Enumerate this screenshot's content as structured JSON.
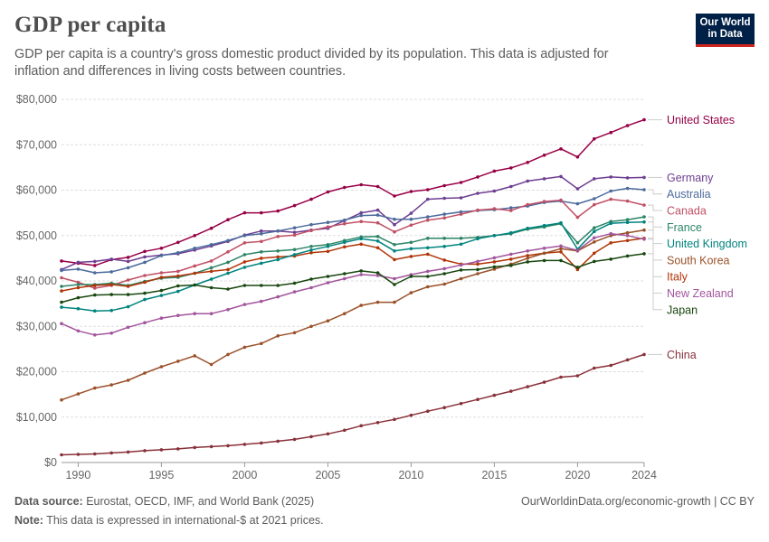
{
  "header": {
    "title": "GDP per capita",
    "subtitle": "GDP per capita is a country's gross domestic product divided by its population. This data is adjusted for inflation and differences in living costs between countries.",
    "logo_line1": "Our World",
    "logo_line2": "in Data"
  },
  "footer": {
    "source_label": "Data source:",
    "source_text": "Eurostat, OECD, IMF, and World Bank (2025)",
    "note_label": "Note:",
    "note_text": "This data is expressed in international-$ at 2021 prices.",
    "link_text": "OurWorldinData.org/economic-growth | CC BY"
  },
  "chart_data": {
    "type": "line",
    "title": "GDP per capita",
    "xlabel": "",
    "ylabel": "",
    "xlim": [
      1989,
      2024
    ],
    "ylim": [
      0,
      80000
    ],
    "grid": "horizontal dashed",
    "legend": "right (direct labels)",
    "x_ticks": [
      1990,
      1995,
      2000,
      2005,
      2010,
      2015,
      2020,
      2024
    ],
    "y_ticks": [
      0,
      10000,
      20000,
      30000,
      40000,
      50000,
      60000,
      70000,
      80000
    ],
    "y_tick_labels": [
      "$0",
      "$10,000",
      "$20,000",
      "$30,000",
      "$40,000",
      "$50,000",
      "$60,000",
      "$70,000",
      "$80,000"
    ],
    "x": [
      1989,
      1990,
      1991,
      1992,
      1993,
      1994,
      1995,
      1996,
      1997,
      1998,
      1999,
      2000,
      2001,
      2002,
      2003,
      2004,
      2005,
      2006,
      2007,
      2008,
      2009,
      2010,
      2011,
      2012,
      2013,
      2014,
      2015,
      2016,
      2017,
      2018,
      2019,
      2020,
      2021,
      2022,
      2023,
      2024
    ],
    "series": [
      {
        "name": "United States",
        "color": "#970046",
        "values": [
          44400,
          43900,
          43400,
          44700,
          45200,
          46500,
          47200,
          48500,
          50000,
          51600,
          53500,
          55000,
          55000,
          55400,
          56600,
          58000,
          59600,
          60600,
          61200,
          60800,
          58700,
          59700,
          60100,
          61000,
          61700,
          62900,
          64200,
          64900,
          66100,
          67700,
          69100,
          67300,
          71300,
          72700,
          74200,
          75500
        ]
      },
      {
        "name": "Germany",
        "color": "#6d3e91",
        "values": [
          42500,
          44100,
          44300,
          44800,
          44300,
          45300,
          45700,
          46000,
          46800,
          47700,
          48700,
          50100,
          51000,
          51000,
          50700,
          51200,
          51600,
          53300,
          55000,
          55600,
          52400,
          54900,
          58000,
          58200,
          58300,
          59300,
          59800,
          60800,
          62000,
          62500,
          63000,
          60300,
          62500,
          62900,
          62700,
          62800
        ]
      },
      {
        "name": "Australia",
        "color": "#4c6a9c",
        "values": [
          42300,
          42600,
          41800,
          42000,
          42900,
          44100,
          45600,
          46200,
          47200,
          48000,
          48900,
          50000,
          50400,
          51000,
          51700,
          52400,
          52900,
          53400,
          54400,
          54500,
          53600,
          53600,
          54100,
          54700,
          55200,
          55500,
          55700,
          56100,
          56500,
          57300,
          57600,
          57000,
          58100,
          59800,
          60400,
          60100
        ]
      },
      {
        "name": "Canada",
        "color": "#c15065",
        "values": [
          40700,
          39700,
          38400,
          39000,
          40200,
          41200,
          41800,
          42100,
          43300,
          44400,
          46400,
          48400,
          48700,
          49800,
          50100,
          51100,
          51900,
          52600,
          53100,
          52800,
          50800,
          52300,
          53400,
          53900,
          54700,
          55600,
          55900,
          55500,
          56800,
          57500,
          57800,
          54000,
          56800,
          58000,
          57600,
          56700
        ]
      },
      {
        "name": "France",
        "color": "#2c8465",
        "values": [
          38800,
          39200,
          39200,
          39500,
          39000,
          39900,
          40600,
          40800,
          41700,
          42900,
          44100,
          45800,
          46400,
          46600,
          46900,
          47600,
          48000,
          48900,
          49700,
          49800,
          48000,
          48500,
          49400,
          49400,
          49400,
          49600,
          50000,
          50400,
          51400,
          51900,
          52600,
          48400,
          51700,
          53100,
          53500,
          54100
        ]
      },
      {
        "name": "Italy",
        "color": "#b13507",
        "values": [
          37800,
          38500,
          39000,
          39200,
          38800,
          39700,
          40800,
          41100,
          41700,
          42100,
          42500,
          44200,
          45000,
          45300,
          45500,
          46200,
          46500,
          47500,
          48100,
          47300,
          44700,
          45400,
          45900,
          44600,
          43700,
          43700,
          44200,
          44800,
          45600,
          46100,
          46400,
          42500,
          46100,
          48400,
          48900,
          49400
        ]
      },
      {
        "name": "United Kingdom",
        "color": "#00847e",
        "values": [
          34200,
          33900,
          33400,
          33500,
          34300,
          35900,
          36800,
          37700,
          39100,
          40400,
          41700,
          43000,
          43900,
          44700,
          45800,
          46800,
          47600,
          48500,
          49300,
          48800,
          46600,
          47100,
          47300,
          47600,
          48100,
          49300,
          50000,
          50600,
          51600,
          52200,
          52800,
          47000,
          50900,
          52700,
          52900,
          53000
        ]
      },
      {
        "name": "South Korea",
        "color": "#9a5129",
        "values": [
          13800,
          15100,
          16400,
          17100,
          18100,
          19700,
          21100,
          22300,
          23500,
          21600,
          23800,
          25400,
          26200,
          27900,
          28600,
          30000,
          31200,
          32800,
          34600,
          35300,
          35300,
          37400,
          38700,
          39300,
          40500,
          41600,
          42600,
          43700,
          45000,
          46100,
          47100,
          46600,
          48600,
          50000,
          50600,
          51200
        ]
      },
      {
        "name": "New Zealand",
        "color": "#a2559c",
        "values": [
          30600,
          29000,
          28100,
          28500,
          29800,
          30800,
          31800,
          32400,
          32800,
          32800,
          33700,
          34800,
          35500,
          36500,
          37600,
          38500,
          39600,
          40500,
          41400,
          41200,
          40500,
          41400,
          42100,
          42700,
          43500,
          44300,
          45100,
          45900,
          46600,
          47200,
          47700,
          46700,
          49500,
          50400,
          50000,
          49200
        ]
      },
      {
        "name": "Japan",
        "color": "#18470f",
        "values": [
          35300,
          36300,
          36900,
          37000,
          37000,
          37300,
          37900,
          38900,
          39100,
          38500,
          38200,
          39000,
          39000,
          39000,
          39500,
          40400,
          41000,
          41600,
          42200,
          41800,
          39200,
          41000,
          41000,
          41600,
          42400,
          42500,
          43100,
          43400,
          44200,
          44500,
          44500,
          43000,
          44300,
          44800,
          45500,
          46000
        ]
      },
      {
        "name": "China",
        "color": "#883039",
        "values": [
          1700,
          1800,
          1900,
          2100,
          2300,
          2600,
          2800,
          3000,
          3300,
          3500,
          3700,
          4000,
          4300,
          4700,
          5100,
          5700,
          6300,
          7100,
          8100,
          8800,
          9500,
          10400,
          11300,
          12100,
          13000,
          13900,
          14800,
          15700,
          16700,
          17700,
          18800,
          19100,
          20800,
          21400,
          22600,
          23800
        ]
      }
    ]
  }
}
